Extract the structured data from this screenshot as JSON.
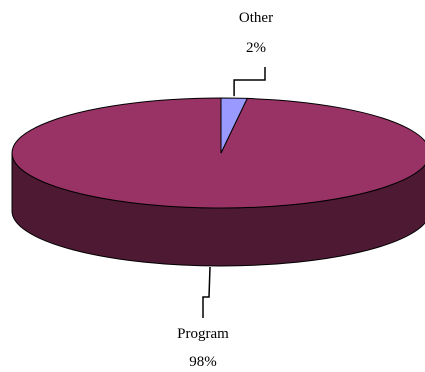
{
  "chart_data": {
    "type": "pie",
    "three_d": true,
    "title": "",
    "slices": [
      {
        "label": "Program",
        "value": 98,
        "value_label": "98%",
        "top_color": "#993366",
        "side_color": "#4d1933"
      },
      {
        "label": "Other",
        "value": 2,
        "value_label": "2%",
        "top_color": "#9999ff",
        "side_color": "#4d4d80"
      }
    ],
    "legend": "none"
  }
}
